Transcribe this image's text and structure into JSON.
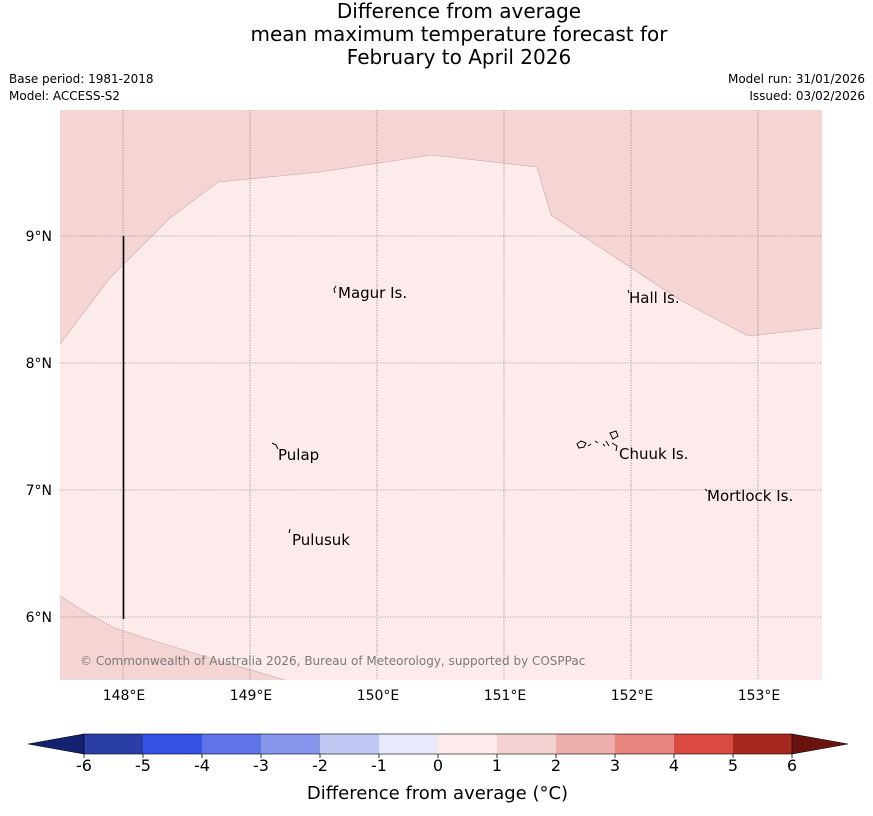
{
  "title": {
    "line1": "Difference from average",
    "line2": "mean maximum temperature forecast for",
    "line3": "February to April 2026"
  },
  "meta": {
    "base_period": "Base period: 1981-2018",
    "model": "Model: ACCESS-S2",
    "model_run": "Model run: 31/01/2026",
    "issued": "Issued: 03/02/2026"
  },
  "map": {
    "lon_labels": [
      "148°E",
      "149°E",
      "150°E",
      "151°E",
      "152°E",
      "153°E"
    ],
    "lat_labels": [
      "9°N",
      "8°N",
      "7°N",
      "6°N"
    ],
    "places": [
      "Magur Is.",
      "Hall Is.",
      "Pulap",
      "Chuuk Is.",
      "Mortlock Is.",
      "Pulusuk"
    ],
    "copyright": "© Commonwealth of Australia 2026, Bureau of Meteorology, supported by COSPPac"
  },
  "legend": {
    "ticks": [
      "-6",
      "-5",
      "-4",
      "-3",
      "-2",
      "-1",
      "0",
      "1",
      "2",
      "3",
      "4",
      "5",
      "6"
    ],
    "label": "Difference from average (°C)",
    "colors": [
      "#2a3ea6",
      "#3452e6",
      "#5f74e8",
      "#8797ee",
      "#c0c8f4",
      "#e8eafb",
      "#fcebea",
      "#f4d3d2",
      "#eeaeab",
      "#e8837d",
      "#da4a40",
      "#a7281f"
    ],
    "low_extend": "#142070",
    "high_extend": "#6b140f",
    "anomaly_fill_0_1": "#fcebea",
    "anomaly_fill_1_2": "#f5d4d4"
  }
}
